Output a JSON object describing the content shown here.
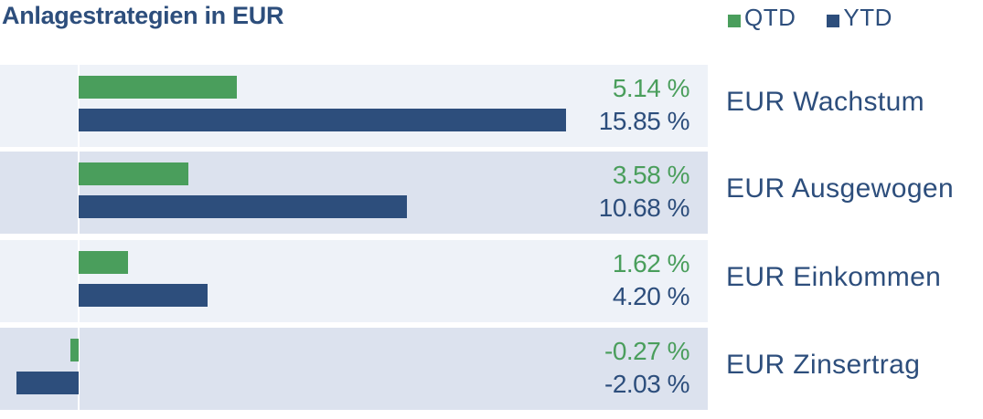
{
  "title": "Anlagestrategien in EUR",
  "colors": {
    "qtd": "#4a9e5c",
    "ytd": "#2d4e7c"
  },
  "chart_data": {
    "type": "bar",
    "orientation": "horizontal",
    "title": "Anlagestrategien in EUR",
    "categories": [
      "EUR Wachstum",
      "EUR Ausgewogen",
      "EUR Einkommen",
      "EUR Zinsertrag"
    ],
    "series": [
      {
        "name": "QTD",
        "values": [
          5.14,
          3.58,
          1.62,
          -0.27
        ],
        "labels": [
          "5.14 %",
          "3.58 %",
          "1.62 %",
          "-0.27 %"
        ]
      },
      {
        "name": "YTD",
        "values": [
          15.85,
          10.68,
          4.2,
          -2.03
        ],
        "labels": [
          "15.85 %",
          "10.68 %",
          "4.20 %",
          "-2.03 %"
        ]
      }
    ],
    "legend": "top-right",
    "grid": false
  }
}
